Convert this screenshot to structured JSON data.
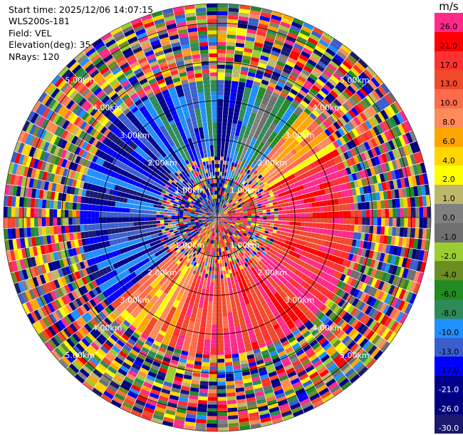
{
  "header": {
    "start_time": "Start time: 2025/12/06 14:07:15",
    "site": "WLS200s-181",
    "field": "Field: VEL",
    "elevation": "Elevation(deg): 35.00",
    "nrays": "NRays: 120"
  },
  "colorbar": {
    "unit": "m/s",
    "levels": [
      {
        "label": "26.0",
        "color": "#ff2a8a",
        "text_color": "#000000"
      },
      {
        "label": "21.0",
        "color": "#ff0000",
        "text_color": "#000000"
      },
      {
        "label": "17.0",
        "color": "#ff3030",
        "text_color": "#000000"
      },
      {
        "label": "13.0",
        "color": "#f04a2a",
        "text_color": "#000000"
      },
      {
        "label": "10.0",
        "color": "#ff6a4a",
        "text_color": "#000000"
      },
      {
        "label": "8.0",
        "color": "#ff8a5a",
        "text_color": "#000000"
      },
      {
        "label": "6.0",
        "color": "#ffa500",
        "text_color": "#000000"
      },
      {
        "label": "4.0",
        "color": "#ffd700",
        "text_color": "#000000"
      },
      {
        "label": "2.0",
        "color": "#ffff00",
        "text_color": "#000000"
      },
      {
        "label": "1.0",
        "color": "#bdb76b",
        "text_color": "#000000"
      },
      {
        "label": "0.0",
        "color": "#808080",
        "text_color": "#000000"
      },
      {
        "label": "-1.0",
        "color": "#6f6f6f",
        "text_color": "#000000"
      },
      {
        "label": "-2.0",
        "color": "#9acd32",
        "text_color": "#000000"
      },
      {
        "label": "-4.0",
        "color": "#6b8e23",
        "text_color": "#000000"
      },
      {
        "label": "-6.0",
        "color": "#228b22",
        "text_color": "#000000"
      },
      {
        "label": "-8.0",
        "color": "#2e8b57",
        "text_color": "#000000"
      },
      {
        "label": "-10.0",
        "color": "#1e90ff",
        "text_color": "#000000"
      },
      {
        "label": "-13.0",
        "color": "#3a5fcd",
        "text_color": "#000000"
      },
      {
        "label": "-17.0",
        "color": "#0000ff",
        "text_color": "#000000"
      },
      {
        "label": "-21.0",
        "color": "#00008b",
        "text_color": "#ffffff"
      },
      {
        "label": "-26.0",
        "color": "#000080",
        "text_color": "#ffffff"
      },
      {
        "label": "-30.0",
        "color": "#191970",
        "text_color": "#ffffff"
      }
    ]
  },
  "range_rings": [
    {
      "label": "1.00km",
      "range_km": 1.0
    },
    {
      "label": "2.00km",
      "range_km": 2.0
    },
    {
      "label": "3.00km",
      "range_km": 3.0
    },
    {
      "label": "4.00km",
      "range_km": 4.0
    },
    {
      "label": "5.00km",
      "range_km": 5.0
    }
  ],
  "ppi": {
    "nrays": 120,
    "max_range_km": 5.5,
    "grid_color": "#000000",
    "ray_edge_color": "#ffffff"
  }
}
